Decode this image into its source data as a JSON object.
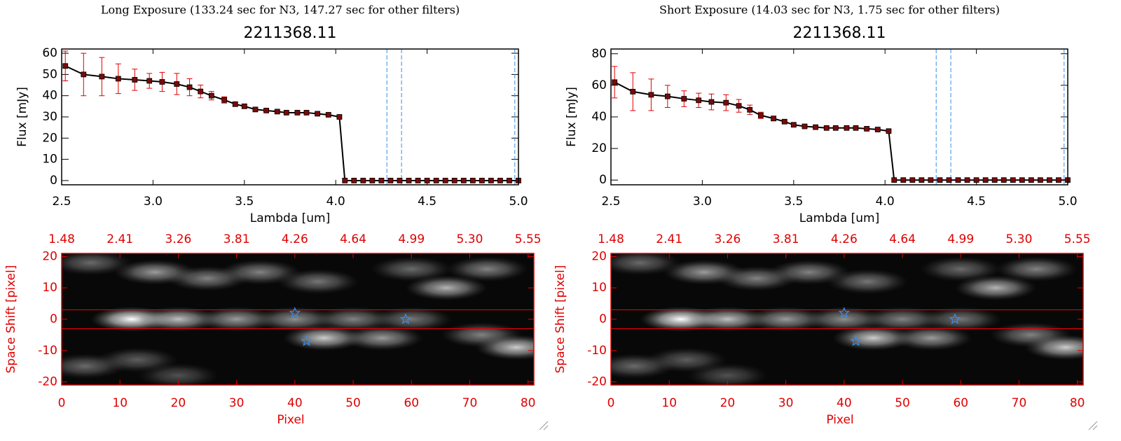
{
  "chart_data": [
    {
      "type": "line",
      "title": "Long Exposure (133.24 sec for N3, 147.27 sec for other filters)",
      "subtitle": "2211368.11",
      "xlabel": "Lambda [um]",
      "ylabel": "Flux [mJy]",
      "x": [
        2.52,
        2.62,
        2.72,
        2.81,
        2.9,
        2.98,
        3.05,
        3.13,
        3.2,
        3.26,
        3.32,
        3.39,
        3.45,
        3.5,
        3.56,
        3.62,
        3.68,
        3.73,
        3.79,
        3.84,
        3.9,
        3.96,
        4.02,
        4.05,
        4.1,
        4.15,
        4.2,
        4.25,
        4.3,
        4.35,
        4.4,
        4.45,
        4.5,
        4.55,
        4.6,
        4.65,
        4.7,
        4.75,
        4.8,
        4.85,
        4.9,
        4.95,
        5.0
      ],
      "series": [
        {
          "color": "#000000",
          "marker_color": "#7a0a0a",
          "error_color": "#e00000",
          "values": [
            54,
            50,
            49,
            48,
            47.5,
            47,
            46.5,
            45.5,
            44,
            42,
            40,
            38,
            36,
            35,
            33.5,
            33,
            32.5,
            32,
            32,
            32,
            31.5,
            31,
            30,
            0,
            0,
            0,
            0,
            0,
            0,
            0,
            0,
            0,
            0,
            0,
            0,
            0,
            0,
            0,
            0,
            0,
            0,
            0,
            0
          ],
          "errors": [
            7,
            10,
            9,
            7,
            5,
            3.5,
            4.5,
            5,
            4,
            3,
            2,
            1.5,
            1,
            1,
            1,
            0.5,
            0.5,
            0.5,
            0.5,
            0.5,
            0.5,
            0.5,
            0.5,
            0,
            0,
            0,
            0,
            0,
            0,
            0,
            0,
            0,
            0,
            0,
            0,
            0,
            0,
            0,
            0,
            0,
            0,
            0,
            0
          ]
        }
      ],
      "vlines": [
        4.28,
        4.36,
        4.98
      ],
      "vline_color": "#3a8ee6",
      "xlim": [
        2.5,
        5.0
      ],
      "xticks": [
        2.5,
        {
          "value": 3,
          "label": "3.0"
        },
        3.5,
        {
          "value": 4,
          "label": "4.0"
        },
        4.5,
        {
          "value": 5,
          "label": "5.0"
        }
      ],
      "ylim": [
        -2,
        62
      ],
      "yticks": [
        0,
        10,
        20,
        30,
        40,
        50,
        60
      ]
    },
    {
      "type": "image",
      "xlabel": "Pixel",
      "ylabel": "Space Shift [pixel]",
      "axis_color": "#e00000",
      "sources": [
        {
          "x": 12,
          "y": 0,
          "level": 1.0
        },
        {
          "x": 20,
          "y": 0,
          "level": 0.75
        },
        {
          "x": 30,
          "y": 0,
          "level": 0.6
        },
        {
          "x": 40,
          "y": 0,
          "level": 0.55
        },
        {
          "x": 50,
          "y": 0,
          "level": 0.5
        },
        {
          "x": 60,
          "y": 0,
          "level": 0.45
        },
        {
          "x": 5,
          "y": 18,
          "level": 0.4
        },
        {
          "x": 16,
          "y": 15,
          "level": 0.6
        },
        {
          "x": 25,
          "y": 13,
          "level": 0.5
        },
        {
          "x": 34,
          "y": 15,
          "level": 0.5
        },
        {
          "x": 44,
          "y": 12,
          "level": 0.45
        },
        {
          "x": 60,
          "y": 16,
          "level": 0.4
        },
        {
          "x": 66,
          "y": 10,
          "level": 0.7
        },
        {
          "x": 73,
          "y": 16,
          "level": 0.5
        },
        {
          "x": 45,
          "y": -6,
          "level": 0.8
        },
        {
          "x": 55,
          "y": -6,
          "level": 0.6
        },
        {
          "x": 72,
          "y": -5,
          "level": 0.5
        },
        {
          "x": 78,
          "y": -9,
          "level": 0.8
        },
        {
          "x": 4,
          "y": -15,
          "level": 0.4
        },
        {
          "x": 13,
          "y": -13,
          "level": 0.35
        },
        {
          "x": 20,
          "y": -18,
          "level": 0.3
        }
      ],
      "stars": {
        "x": [
          40,
          59,
          42
        ],
        "y": [
          2,
          0,
          -7
        ],
        "color": "#3a8ee6"
      },
      "hlines": [
        3,
        -3
      ],
      "hline_color": "#e00000",
      "xlim": [
        0,
        81
      ],
      "xticks": [
        0,
        10,
        20,
        30,
        40,
        50,
        60,
        70,
        80
      ],
      "x2ticks": [
        {
          "value": 0,
          "label": "1.48"
        },
        {
          "value": 10,
          "label": "2.41"
        },
        {
          "value": 20,
          "label": "3.26"
        },
        {
          "value": 30,
          "label": "3.81"
        },
        {
          "value": 40,
          "label": "4.26"
        },
        {
          "value": 50,
          "label": "4.64"
        },
        {
          "value": 60,
          "label": "4.99"
        },
        {
          "value": 70,
          "label": "5.30"
        },
        {
          "value": 80,
          "label": "5.55"
        }
      ],
      "ylim": [
        -21,
        21
      ],
      "yticks": [
        -20,
        -10,
        0,
        10,
        20
      ]
    },
    {
      "type": "line",
      "title": "Short Exposure (14.03 sec for N3, 1.75 sec for other filters)",
      "subtitle": "2211368.11",
      "xlabel": "Lambda [um]",
      "ylabel": "Flux [mJy]",
      "x": [
        2.52,
        2.62,
        2.72,
        2.81,
        2.9,
        2.98,
        3.05,
        3.13,
        3.2,
        3.26,
        3.32,
        3.39,
        3.45,
        3.5,
        3.56,
        3.62,
        3.68,
        3.73,
        3.79,
        3.84,
        3.9,
        3.96,
        4.02,
        4.05,
        4.1,
        4.15,
        4.2,
        4.25,
        4.3,
        4.35,
        4.4,
        4.45,
        4.5,
        4.55,
        4.6,
        4.65,
        4.7,
        4.75,
        4.8,
        4.85,
        4.9,
        4.95,
        5.0
      ],
      "series": [
        {
          "color": "#000000",
          "marker_color": "#7a0a0a",
          "error_color": "#e00000",
          "values": [
            62,
            56,
            54,
            53,
            51.5,
            50.5,
            49.5,
            49,
            47,
            44.5,
            41,
            39,
            37,
            35,
            34,
            33.5,
            33,
            33,
            33,
            33,
            32.5,
            32,
            31,
            0,
            0,
            0,
            0,
            0,
            0,
            0,
            0,
            0,
            0,
            0,
            0,
            0,
            0,
            0,
            0,
            0,
            0,
            0,
            0
          ],
          "errors": [
            10,
            12,
            10,
            7,
            5,
            4.5,
            5,
            5,
            4,
            3,
            2,
            1.5,
            1,
            1,
            1,
            0.5,
            0.5,
            0.5,
            0.5,
            0.5,
            0.5,
            0.5,
            0.5,
            0,
            0,
            0,
            0,
            0,
            0,
            0,
            0,
            0,
            0,
            0,
            0,
            0,
            0,
            0,
            0,
            0,
            0,
            0,
            0
          ]
        }
      ],
      "vlines": [
        4.28,
        4.36,
        4.98
      ],
      "vline_color": "#3a8ee6",
      "xlim": [
        2.5,
        5.0
      ],
      "xticks": [
        2.5,
        {
          "value": 3,
          "label": "3.0"
        },
        3.5,
        {
          "value": 4,
          "label": "4.0"
        },
        4.5,
        {
          "value": 5,
          "label": "5.0"
        }
      ],
      "ylim": [
        -3,
        83
      ],
      "yticks": [
        0,
        20,
        40,
        60,
        80
      ]
    },
    {
      "type": "image",
      "xlabel": "Pixel",
      "ylabel": "Space Shift [pixel]",
      "axis_color": "#e00000",
      "sources": [
        {
          "x": 12,
          "y": 0,
          "level": 1.0
        },
        {
          "x": 20,
          "y": 0,
          "level": 0.75
        },
        {
          "x": 30,
          "y": 0,
          "level": 0.6
        },
        {
          "x": 40,
          "y": 0,
          "level": 0.55
        },
        {
          "x": 50,
          "y": 0,
          "level": 0.5
        },
        {
          "x": 60,
          "y": 0,
          "level": 0.45
        },
        {
          "x": 5,
          "y": 18,
          "level": 0.4
        },
        {
          "x": 16,
          "y": 15,
          "level": 0.6
        },
        {
          "x": 25,
          "y": 13,
          "level": 0.5
        },
        {
          "x": 34,
          "y": 15,
          "level": 0.5
        },
        {
          "x": 44,
          "y": 12,
          "level": 0.45
        },
        {
          "x": 60,
          "y": 16,
          "level": 0.4
        },
        {
          "x": 66,
          "y": 10,
          "level": 0.7
        },
        {
          "x": 73,
          "y": 16,
          "level": 0.5
        },
        {
          "x": 45,
          "y": -6,
          "level": 0.8
        },
        {
          "x": 55,
          "y": -6,
          "level": 0.6
        },
        {
          "x": 72,
          "y": -5,
          "level": 0.5
        },
        {
          "x": 78,
          "y": -9,
          "level": 0.8
        },
        {
          "x": 4,
          "y": -15,
          "level": 0.4
        },
        {
          "x": 13,
          "y": -13,
          "level": 0.35
        },
        {
          "x": 20,
          "y": -18,
          "level": 0.3
        }
      ],
      "stars": {
        "x": [
          40,
          59,
          42
        ],
        "y": [
          2,
          0,
          -7
        ],
        "color": "#3a8ee6"
      },
      "hlines": [
        3,
        -3
      ],
      "hline_color": "#e00000",
      "xlim": [
        0,
        81
      ],
      "xticks": [
        0,
        10,
        20,
        30,
        40,
        50,
        60,
        70,
        80
      ],
      "x2ticks": [
        {
          "value": 0,
          "label": "1.48"
        },
        {
          "value": 10,
          "label": "2.41"
        },
        {
          "value": 20,
          "label": "3.26"
        },
        {
          "value": 30,
          "label": "3.81"
        },
        {
          "value": 40,
          "label": "4.26"
        },
        {
          "value": 50,
          "label": "4.64"
        },
        {
          "value": 60,
          "label": "4.99"
        },
        {
          "value": 70,
          "label": "5.30"
        },
        {
          "value": 80,
          "label": "5.55"
        }
      ],
      "ylim": [
        -21,
        21
      ],
      "yticks": [
        -20,
        -10,
        0,
        10,
        20
      ]
    }
  ]
}
